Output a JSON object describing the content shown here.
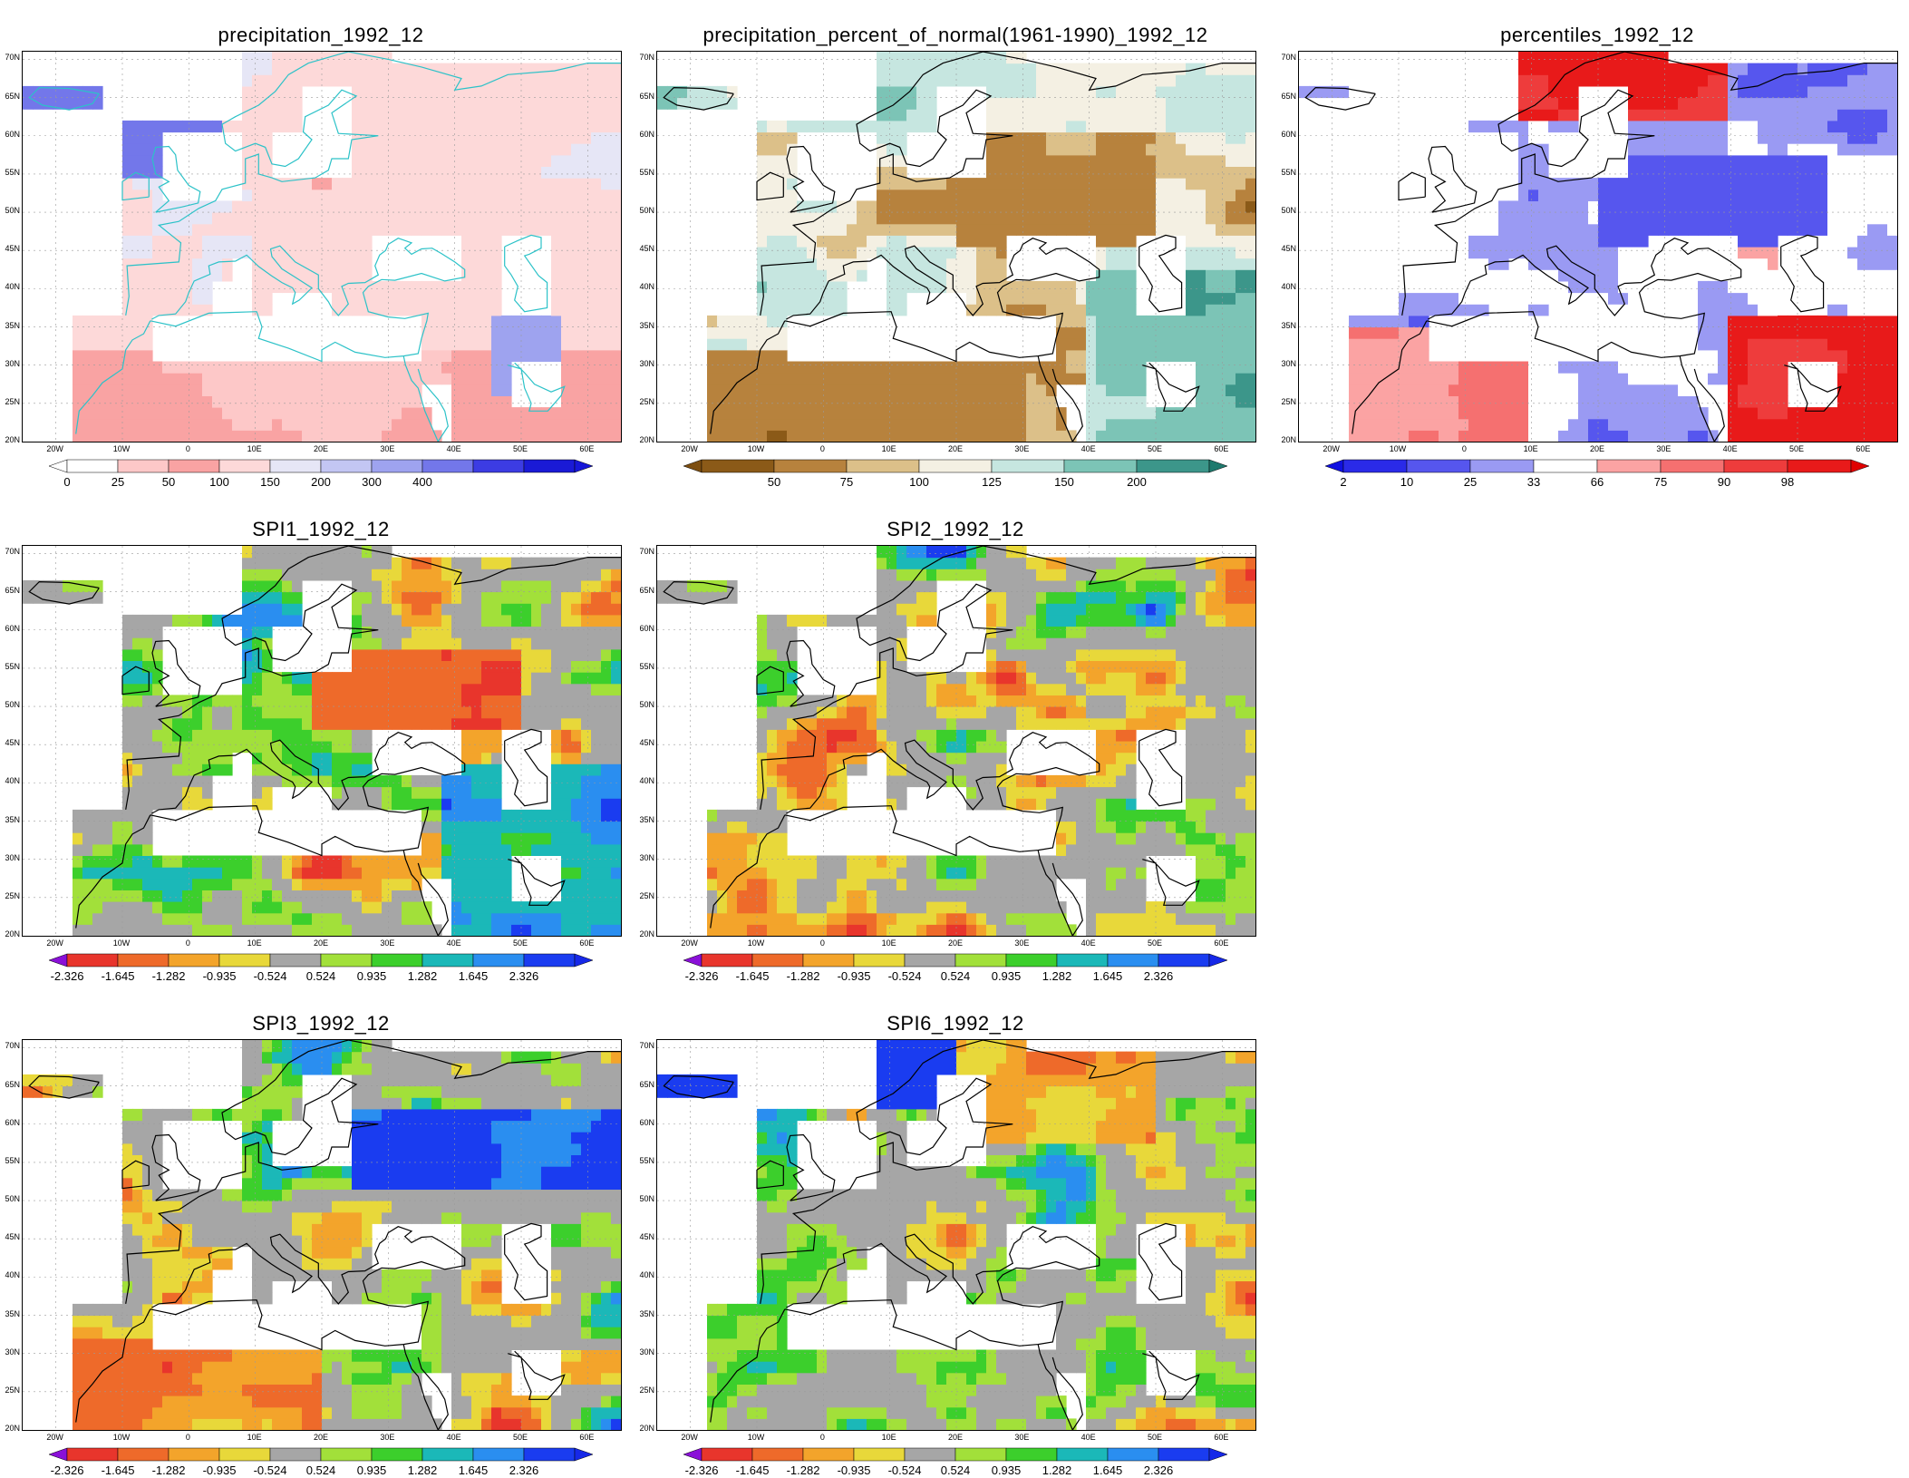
{
  "axes": {
    "lat_labels": [
      "70N",
      "65N",
      "60N",
      "55N",
      "50N",
      "45N",
      "40N",
      "35N",
      "30N",
      "25N",
      "20N"
    ],
    "lon_labels": [
      "20W",
      "10W",
      "0",
      "10E",
      "20E",
      "30E",
      "40E",
      "50E",
      "60E"
    ]
  },
  "panels": [
    {
      "id": "precipitation",
      "title": "precipitation_1992_12",
      "field": "precip",
      "colorbar": {
        "labels": [
          "0",
          "25",
          "50",
          "100",
          "150",
          "200",
          "300",
          "400"
        ],
        "colors": [
          "#ffffff",
          "#fdc8c8",
          "#f9a3a3",
          "#fdd9d9",
          "#e6e6f6",
          "#c3c6f3",
          "#9ea3ef",
          "#7377ea",
          "#3c3ce3",
          "#1a1ad6"
        ],
        "left_arrow": "#ffffff",
        "right_arrow": "#1717d8"
      }
    },
    {
      "id": "pct_normal",
      "title": "precipitation_percent_of_normal(1961-1990)_1992_12",
      "field": "pct",
      "colorbar": {
        "labels": [
          "50",
          "75",
          "100",
          "125",
          "150",
          "200"
        ],
        "colors": [
          "#8b5a18",
          "#b7823d",
          "#dcc089",
          "#f4f0e3",
          "#c6e6e0",
          "#7cc4b6",
          "#3c968a"
        ],
        "left_arrow": "#7d4e10",
        "right_arrow": "#1f7a6e"
      }
    },
    {
      "id": "percentiles",
      "title": "percentiles_1992_12",
      "field": "perc",
      "colorbar": {
        "labels": [
          "2",
          "10",
          "25",
          "33",
          "66",
          "75",
          "90",
          "98"
        ],
        "colors": [
          "#2a2ae8",
          "#5656ee",
          "#9a9af3",
          "#ffffff",
          "#fba3a3",
          "#f57070",
          "#ee3c3c",
          "#e81a1a"
        ],
        "left_arrow": "#1010e0",
        "right_arrow": "#e00000"
      }
    },
    {
      "id": "spi1",
      "title": "SPI1_1992_12",
      "field": "spi1",
      "colorbar": {
        "labels": [
          "-2.326",
          "-1.645",
          "-1.282",
          "-0.935",
          "-0.524",
          "0.524",
          "0.935",
          "1.282",
          "1.645",
          "2.326"
        ],
        "colors": [
          "#e8352c",
          "#ee6a2a",
          "#f3a42b",
          "#e8d83a",
          "#a6a6a6",
          "#a2e03a",
          "#3ccf2c",
          "#1bb8b8",
          "#2a8ef0",
          "#1a3cf0"
        ],
        "left_arrow": "#8a10d8",
        "right_arrow": "#1628e8"
      }
    },
    {
      "id": "spi2",
      "title": "SPI2_1992_12",
      "field": "spi2",
      "colorbar": {
        "labels": [
          "-2.326",
          "-1.645",
          "-1.282",
          "-0.935",
          "-0.524",
          "0.524",
          "0.935",
          "1.282",
          "1.645",
          "2.326"
        ],
        "colors": [
          "#e8352c",
          "#ee6a2a",
          "#f3a42b",
          "#e8d83a",
          "#a6a6a6",
          "#a2e03a",
          "#3ccf2c",
          "#1bb8b8",
          "#2a8ef0",
          "#1a3cf0"
        ],
        "left_arrow": "#8a10d8",
        "right_arrow": "#1628e8"
      }
    },
    {
      "id": "spi3",
      "title": "SPI3_1992_12",
      "field": "spi3",
      "colorbar": {
        "labels": [
          "-2.326",
          "-1.645",
          "-1.282",
          "-0.935",
          "-0.524",
          "0.524",
          "0.935",
          "1.282",
          "1.645",
          "2.326"
        ],
        "colors": [
          "#e8352c",
          "#ee6a2a",
          "#f3a42b",
          "#e8d83a",
          "#a6a6a6",
          "#a2e03a",
          "#3ccf2c",
          "#1bb8b8",
          "#2a8ef0",
          "#1a3cf0"
        ],
        "left_arrow": "#8a10d8",
        "right_arrow": "#1628e8"
      }
    },
    {
      "id": "spi6",
      "title": "SPI6_1992_12",
      "field": "spi6",
      "colorbar": {
        "labels": [
          "-2.326",
          "-1.645",
          "-1.282",
          "-0.935",
          "-0.524",
          "0.524",
          "0.935",
          "1.282",
          "1.645",
          "2.326"
        ],
        "colors": [
          "#e8352c",
          "#ee6a2a",
          "#f3a42b",
          "#e8d83a",
          "#a6a6a6",
          "#a2e03a",
          "#3ccf2c",
          "#1bb8b8",
          "#2a8ef0",
          "#1a3cf0"
        ],
        "left_arrow": "#8a10d8",
        "right_arrow": "#1628e8"
      }
    }
  ]
}
